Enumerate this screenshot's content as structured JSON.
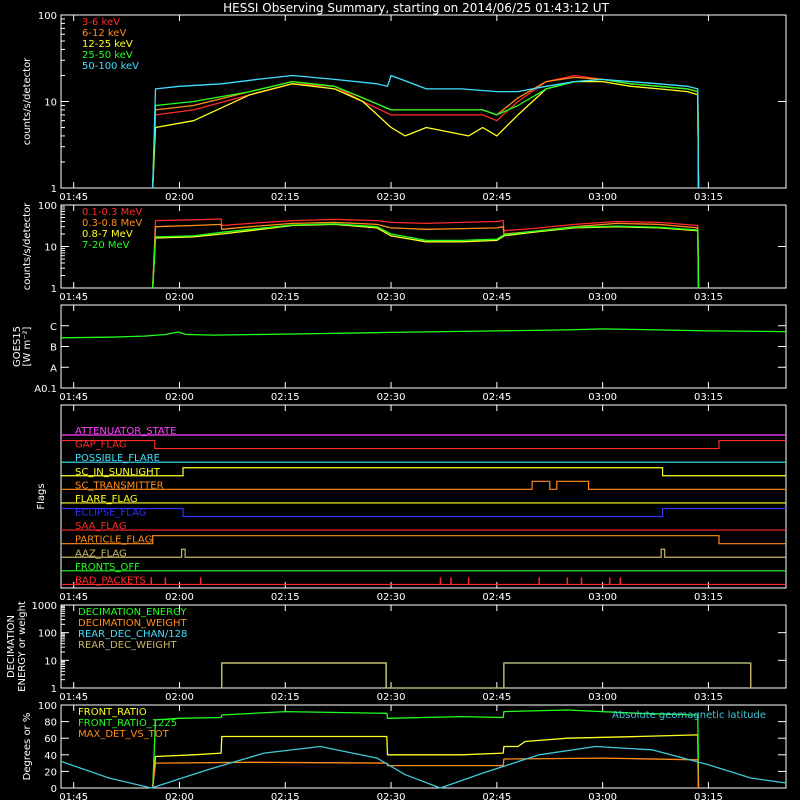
{
  "title": "HESSI Observing Summary, starting on 2014/06/25 01:43:12 UT",
  "time_axis": {
    "start_minutes": 103.2,
    "end_minutes": 206,
    "tick_labels": [
      "01:45",
      "02:00",
      "02:15",
      "02:30",
      "02:45",
      "03:00",
      "03:15"
    ],
    "tick_minutes": [
      105,
      120,
      135,
      150,
      165,
      180,
      195
    ]
  },
  "chart_data": [
    {
      "type": "line",
      "name_id": "lowE",
      "ylabel": "counts/s/detector",
      "yscale": "log",
      "ylim": [
        1,
        100
      ],
      "ytick_labels": [
        "1",
        "10",
        "100"
      ],
      "ytick_values": [
        1,
        10,
        100
      ],
      "series": [
        {
          "name": "3-6 keV",
          "color": "#ff2a2a",
          "x": [
            116.2,
            116.6,
            122,
            130,
            136,
            142,
            146,
            150,
            155,
            161,
            163,
            165,
            168,
            172,
            176,
            180,
            184,
            188,
            192,
            193.5,
            193.6
          ],
          "y": [
            1,
            7,
            8,
            12,
            16,
            15,
            10,
            7,
            7,
            7,
            7,
            6,
            10,
            17,
            20,
            18,
            16,
            15,
            14,
            13,
            1
          ]
        },
        {
          "name": "6-12 keV",
          "color": "#ff8c1a",
          "x": [
            116.2,
            116.6,
            122,
            130,
            136,
            142,
            146,
            150,
            155,
            161,
            163,
            165,
            168,
            172,
            176,
            180,
            184,
            188,
            192,
            193.5,
            193.6
          ],
          "y": [
            1,
            8,
            9,
            13,
            17,
            15,
            11,
            8,
            8,
            8,
            8,
            7,
            11,
            17,
            19,
            18,
            16,
            15,
            14,
            13,
            1
          ]
        },
        {
          "name": "12-25 keV",
          "color": "#ffff20",
          "x": [
            116.2,
            116.6,
            122,
            130,
            136,
            142,
            146,
            150,
            152,
            155,
            161,
            163,
            165,
            168,
            172,
            176,
            180,
            184,
            188,
            192,
            193.5,
            193.6
          ],
          "y": [
            1,
            5,
            6,
            12,
            16,
            14,
            10,
            5,
            4,
            5,
            4,
            5,
            4,
            7,
            14,
            17,
            17,
            15,
            14,
            13,
            12,
            1
          ]
        },
        {
          "name": "25-50 keV",
          "color": "#20ff20",
          "x": [
            116.2,
            116.6,
            122,
            130,
            136,
            142,
            146,
            150,
            155,
            161,
            163,
            165,
            168,
            172,
            176,
            180,
            184,
            188,
            192,
            193.5,
            193.6
          ],
          "y": [
            1,
            9,
            10,
            13,
            17,
            15,
            11,
            8,
            8,
            8,
            8,
            7,
            9,
            14,
            17,
            18,
            16,
            15,
            14,
            13,
            1
          ]
        },
        {
          "name": "50-100 keV",
          "color": "#40e0ff",
          "x": [
            116.2,
            116.6,
            120,
            126,
            131,
            136,
            142,
            148,
            149.5,
            150,
            155,
            160,
            165,
            168,
            172,
            176,
            180,
            184,
            188,
            192,
            193.5,
            193.6
          ],
          "y": [
            1,
            14,
            15,
            16,
            18,
            20,
            18,
            16,
            15,
            20,
            14,
            14,
            13,
            13,
            15,
            17,
            18,
            17,
            16,
            15,
            14,
            1
          ]
        }
      ]
    },
    {
      "type": "line",
      "name_id": "highE",
      "ylabel": "counts/s/detector",
      "yscale": "log",
      "ylim": [
        1,
        100
      ],
      "ytick_labels": [
        "1",
        "10",
        "100"
      ],
      "ytick_values": [
        1,
        10,
        100
      ],
      "series": [
        {
          "name": "0.1-0.3 MeV",
          "color": "#ff2a2a",
          "x": [
            116.2,
            116.6,
            122,
            125.9,
            126,
            130,
            136,
            142,
            148,
            150,
            155,
            160,
            165,
            165.9,
            166,
            170,
            176,
            182,
            188,
            193.5,
            193.6
          ],
          "y": [
            1,
            42,
            44,
            46,
            32,
            36,
            42,
            45,
            42,
            38,
            36,
            38,
            40,
            42,
            24,
            27,
            34,
            40,
            38,
            32,
            1
          ]
        },
        {
          "name": "0.3-0.8 MeV",
          "color": "#ff8c1a",
          "x": [
            116.2,
            116.6,
            122,
            125.9,
            126,
            130,
            136,
            142,
            148,
            150,
            155,
            160,
            165,
            165.9,
            166,
            170,
            176,
            182,
            188,
            193.5,
            193.6
          ],
          "y": [
            1,
            30,
            32,
            34,
            26,
            30,
            36,
            38,
            34,
            28,
            26,
            27,
            28,
            30,
            20,
            23,
            30,
            36,
            34,
            28,
            1
          ]
        },
        {
          "name": "0.8-7 MeV",
          "color": "#ffff20",
          "x": [
            116.2,
            116.6,
            122,
            126,
            130,
            136,
            142,
            148,
            150,
            155,
            160,
            165,
            166,
            170,
            176,
            182,
            188,
            193.5,
            193.6
          ],
          "y": [
            1,
            16,
            17,
            20,
            24,
            32,
            34,
            28,
            18,
            13,
            13,
            14,
            18,
            22,
            28,
            30,
            28,
            24,
            1
          ]
        },
        {
          "name": "7-20 MeV",
          "color": "#20ff20",
          "x": [
            116.2,
            116.6,
            122,
            126,
            130,
            136,
            142,
            148,
            150,
            155,
            160,
            165,
            166,
            170,
            176,
            182,
            188,
            193.5,
            193.6
          ],
          "y": [
            1,
            17,
            18,
            22,
            26,
            33,
            35,
            30,
            20,
            14,
            14,
            15,
            19,
            23,
            29,
            31,
            29,
            25,
            1
          ]
        }
      ]
    },
    {
      "type": "line",
      "name_id": "goes",
      "ylabel": "GOES15",
      "yunit": "[W m⁻²]",
      "ylim": [
        0,
        4
      ],
      "ytick_labels": [
        "A0.1",
        "A",
        "B",
        "C"
      ],
      "ytick_values": [
        0,
        1,
        2,
        3
      ],
      "series": [
        {
          "name": "GOES15",
          "color": "#20ff20",
          "x": [
            103.2,
            110,
            115,
            118,
            119.8,
            121,
            125,
            135,
            150,
            165,
            175,
            180,
            185,
            195,
            206
          ],
          "y": [
            2.42,
            2.45,
            2.5,
            2.58,
            2.7,
            2.58,
            2.55,
            2.6,
            2.68,
            2.75,
            2.8,
            2.85,
            2.82,
            2.75,
            2.72
          ]
        }
      ]
    },
    {
      "type": "line",
      "name_id": "decim",
      "ylabel": "DECIMATION ENERGY or weight",
      "yscale": "log",
      "ylim": [
        1,
        1000
      ],
      "ytick_labels": [
        "1",
        "10",
        "100",
        "1000"
      ],
      "ytick_values": [
        1,
        10,
        100,
        1000
      ],
      "series": [
        {
          "name": "DECIMATION_ENERGY",
          "color": "#20ff20",
          "x": [],
          "y": []
        },
        {
          "name": "DECIMATION_WEIGHT",
          "color": "#ff8c1a",
          "x": [
            126,
            126,
            149.3,
            149.3
          ],
          "y": [
            1,
            8,
            8,
            1
          ]
        },
        {
          "name": "REAR_DEC_CHAN/128",
          "color": "#40e0ff",
          "x": [
            126,
            126,
            149.3,
            149.3,
            166,
            166,
            201,
            201
          ],
          "y": [
            1,
            8,
            8,
            1,
            1,
            8,
            8,
            1
          ]
        },
        {
          "name": "REAR_DEC_WEIGHT",
          "color": "#c8b464",
          "x": [
            126,
            126,
            149.3,
            149.3,
            166,
            166,
            201,
            201
          ],
          "y": [
            1,
            8,
            8,
            1,
            1,
            8,
            8,
            1
          ]
        }
      ]
    },
    {
      "type": "line",
      "name_id": "ratio",
      "ylabel": "Degrees or %",
      "ylim": [
        0,
        100
      ],
      "ytick_labels": [
        "0",
        "20",
        "40",
        "60",
        "80",
        "100"
      ],
      "ytick_values": [
        0,
        20,
        40,
        60,
        80,
        100
      ],
      "annotation": "Absolute geomagnetic latitude",
      "series": [
        {
          "name": "FRONT_RATIO",
          "color": "#ffff20",
          "x": [
            116.2,
            116.6,
            122,
            125.9,
            126,
            135,
            149.4,
            149.5,
            160,
            165.9,
            166,
            168,
            169,
            175,
            185,
            193.5,
            193.6
          ],
          "y": [
            0,
            38,
            40,
            42,
            62,
            62,
            62,
            40,
            40,
            42,
            50,
            50,
            56,
            60,
            62,
            64,
            0
          ]
        },
        {
          "name": "FRONT_RATIO_1225",
          "color": "#20ff20",
          "x": [
            116.2,
            116.6,
            120,
            125.9,
            126,
            135,
            149.4,
            149.5,
            160,
            165.9,
            166,
            175,
            185,
            193.5,
            193.6
          ],
          "y": [
            0,
            82,
            84,
            85,
            88,
            92,
            90,
            84,
            86,
            85,
            92,
            94,
            90,
            88,
            0
          ]
        },
        {
          "name": "MAX_DET_VS_TOT",
          "color": "#ff8c1a",
          "x": [
            116.2,
            116.6,
            130,
            149.4,
            149.5,
            165.9,
            166,
            180,
            193.5,
            193.6
          ],
          "y": [
            0,
            30,
            31,
            30,
            27,
            27,
            35,
            36,
            34,
            0
          ]
        },
        {
          "name": "Absolute geomagnetic latitude",
          "color": "#40c8d8",
          "x": [
            103.2,
            110,
            116,
            124,
            132,
            140,
            148,
            152,
            157,
            163,
            171,
            179,
            187,
            195,
            201,
            206
          ],
          "y": [
            32,
            12,
            0,
            22,
            42,
            50,
            36,
            16,
            0,
            18,
            40,
            50,
            46,
            28,
            12,
            6
          ]
        }
      ]
    },
    {
      "type": "table",
      "name_id": "flags",
      "ylabel": "Flags",
      "rows": [
        {
          "name": "ATTENUATOR_STATE",
          "color": "#ff40ff",
          "steps": [
            [
              103.2,
              0
            ]
          ]
        },
        {
          "name": "GAP_FLAG",
          "color": "#ff2a2a",
          "steps": [
            [
              103.2,
              1
            ],
            [
              116.5,
              0
            ],
            [
              196.5,
              1
            ]
          ]
        },
        {
          "name": "POSSIBLE_FLARE",
          "color": "#40e0ff",
          "steps": [
            [
              103.2,
              0
            ]
          ]
        },
        {
          "name": "SC_IN_SUNLIGHT",
          "color": "#ffff20",
          "steps": [
            [
              103.2,
              0
            ],
            [
              120.5,
              1
            ],
            [
              188.5,
              0
            ]
          ]
        },
        {
          "name": "SC_TRANSMITTER",
          "color": "#ff8c1a",
          "steps": [
            [
              103.2,
              0
            ],
            [
              170,
              1
            ],
            [
              172.5,
              0
            ],
            [
              173.5,
              1
            ],
            [
              178,
              0
            ]
          ]
        },
        {
          "name": "FLARE_FLAG",
          "color": "#ffff20",
          "steps": [
            [
              103.2,
              0
            ]
          ]
        },
        {
          "name": "ECLIPSE_FLAG",
          "color": "#3030ff",
          "steps": [
            [
              103.2,
              1
            ],
            [
              120.5,
              0
            ],
            [
              188.5,
              1
            ]
          ]
        },
        {
          "name": "SAA_FLAG",
          "color": "#ff2a2a",
          "steps": [
            [
              103.2,
              0
            ]
          ]
        },
        {
          "name": "PARTICLE_FLAG",
          "color": "#ff8c1a",
          "steps": [
            [
              103.2,
              0
            ],
            [
              116.2,
              1
            ],
            [
              196.5,
              0
            ]
          ]
        },
        {
          "name": "AAZ_FLAG",
          "color": "#c8b464",
          "steps": [
            [
              103.2,
              0
            ],
            [
              120.3,
              1
            ],
            [
              120.8,
              0
            ],
            [
              188.3,
              1
            ],
            [
              188.8,
              0
            ]
          ]
        },
        {
          "name": "FRONTS_OFF",
          "color": "#20ff20",
          "steps": [
            [
              103.2,
              0
            ]
          ]
        },
        {
          "name": "BAD_PACKETS",
          "color": "#ff2a2a",
          "steps": [
            [
              103.2,
              0
            ]
          ],
          "spikes": [
            116,
            118,
            123,
            157,
            158.5,
            161,
            171,
            175,
            177,
            181,
            182.5
          ]
        }
      ]
    }
  ]
}
